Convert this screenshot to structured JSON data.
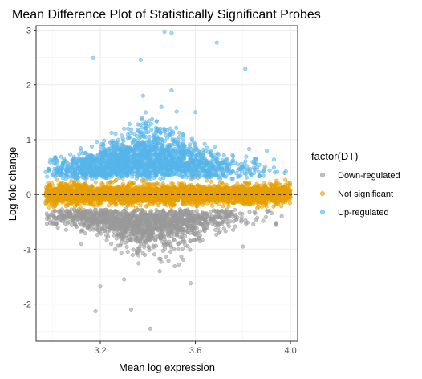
{
  "chart_data": {
    "type": "scatter",
    "title": "Mean Difference Plot of Statistically Significant Probes",
    "xlabel": "Mean log expression",
    "ylabel": "Log fold change",
    "xlim": [
      2.93,
      4.03
    ],
    "ylim": [
      -2.68,
      3.08
    ],
    "x_ticks": [
      3.2,
      3.6,
      4.0
    ],
    "x_tick_labels": [
      "3.2",
      "3.6",
      "4.0"
    ],
    "y_ticks": [
      -2,
      -1,
      0,
      1,
      2,
      3
    ],
    "y_tick_labels": [
      "-2",
      "-1",
      "0",
      "1",
      "2",
      "3"
    ],
    "grid": true,
    "reference_line": {
      "y": 0,
      "style": "dashed"
    },
    "legend": {
      "title": "factor(DT)",
      "position": "right"
    },
    "series": [
      {
        "name": "Down-regulated",
        "color": "#999999",
        "sample_points": [
          [
            3.18,
            -2.13
          ],
          [
            3.41,
            -2.45
          ],
          [
            3.33,
            -2.1
          ],
          [
            3.2,
            -1.68
          ],
          [
            3.3,
            -1.55
          ],
          [
            3.45,
            -1.4
          ],
          [
            3.58,
            -1.62
          ],
          [
            3.53,
            -1.28
          ],
          [
            3.8,
            -0.95
          ],
          [
            3.12,
            -0.9
          ],
          [
            3.35,
            -0.8
          ],
          [
            3.62,
            -0.75
          ],
          [
            3.7,
            -0.55
          ]
        ]
      },
      {
        "name": "Not significant",
        "color": "#E69F00",
        "sample_points": [
          [
            2.97,
            0.0
          ],
          [
            3.1,
            0.12
          ],
          [
            3.3,
            -0.15
          ],
          [
            3.5,
            0.2
          ],
          [
            3.7,
            -0.18
          ],
          [
            3.9,
            0.1
          ],
          [
            4.0,
            -0.05
          ]
        ]
      },
      {
        "name": "Up-regulated",
        "color": "#56B4E9",
        "sample_points": [
          [
            3.47,
            2.97
          ],
          [
            3.5,
            2.95
          ],
          [
            3.69,
            2.77
          ],
          [
            3.17,
            2.49
          ],
          [
            3.37,
            2.46
          ],
          [
            3.81,
            2.29
          ],
          [
            3.5,
            1.9
          ],
          [
            3.38,
            1.8
          ],
          [
            3.6,
            1.5
          ],
          [
            3.3,
            1.2
          ],
          [
            3.9,
            0.8
          ],
          [
            3.0,
            0.35
          ]
        ]
      }
    ]
  }
}
